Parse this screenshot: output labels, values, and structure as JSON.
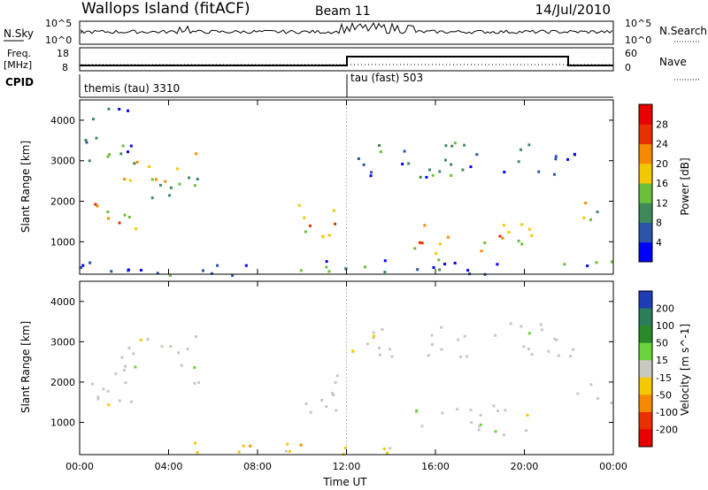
{
  "header": {
    "title": "Wallops Island (fitACF)",
    "beam": "Beam 11",
    "date": "14/Jul/2010"
  },
  "panels": {
    "nsky": {
      "label": "N.Sky",
      "left_ticks": [
        "10^5",
        "10^0"
      ],
      "right_ticks": [
        "10^5",
        "10^0"
      ],
      "right_label": "N.Search"
    },
    "freq": {
      "label_line1": "Freq.",
      "label_line2": "[MHz]",
      "left_ticks": [
        "18",
        "8"
      ],
      "right_ticks": [
        "60",
        "0"
      ],
      "right_label": "Nave"
    },
    "cpid": {
      "label": "CPID",
      "segments": [
        "themis (tau) 3310",
        "tau (fast) 503"
      ]
    }
  },
  "chart_data": [
    {
      "type": "heatmap",
      "name": "power",
      "ylabel": "Slant Range [km]",
      "yticks": [
        1000,
        2000,
        3000,
        4000
      ],
      "ylim": [
        200,
        4500
      ],
      "xlabel": "Time UT",
      "xticks": [
        "00:00",
        "04:00",
        "08:00",
        "12:00",
        "16:00",
        "20:00",
        "00:00"
      ],
      "colorbar": {
        "label": "Power [dB]",
        "ticks": [
          "4",
          "8",
          "12",
          "16",
          "20",
          "24",
          "28"
        ],
        "colors": [
          "#0000ff",
          "#2a55a8",
          "#3f8a5a",
          "#6bbf3a",
          "#f2c800",
          "#f58a00",
          "#e83000",
          "#e60000"
        ]
      },
      "echo_regions": [
        {
          "t": [
            0.5,
            3.5
          ],
          "r": [
            1300,
            2000
          ],
          "level": "strong"
        },
        {
          "t": [
            1.5,
            5.3
          ],
          "r": [
            2000,
            3300
          ],
          "level": "medium"
        },
        {
          "t": [
            0.2,
            2.5
          ],
          "r": [
            3000,
            4500
          ],
          "level": "weak"
        },
        {
          "t": [
            9.8,
            12.0
          ],
          "r": [
            1100,
            2200
          ],
          "level": "strong"
        },
        {
          "t": [
            12.2,
            22.3
          ],
          "r": [
            2600,
            3500
          ],
          "level": "weak"
        },
        {
          "t": [
            14.5,
            20.5
          ],
          "r": [
            700,
            1500
          ],
          "level": "strong"
        },
        {
          "t": [
            22.0,
            24.0
          ],
          "r": [
            1500,
            2000
          ],
          "level": "medium"
        },
        {
          "t": [
            0.0,
            24.0
          ],
          "r": [
            200,
            600
          ],
          "level": "weak"
        }
      ]
    },
    {
      "type": "heatmap",
      "name": "velocity",
      "ylabel": "Slant Range [km]",
      "yticks": [
        1000,
        2000,
        3000,
        4000
      ],
      "ylim": [
        200,
        4500
      ],
      "xlabel": "Time UT",
      "xticks": [
        "00:00",
        "04:00",
        "08:00",
        "12:00",
        "16:00",
        "20:00",
        "00:00"
      ],
      "colorbar": {
        "label": "Velocity [m s^-1]",
        "ticks": [
          "200",
          "100",
          "50",
          "15",
          "-15",
          "-50",
          "-100",
          "-200"
        ],
        "colors": [
          "#1e3cb4",
          "#2e7d5a",
          "#2a8a2a",
          "#6ad23a",
          "#c8c8c0",
          "#f5c800",
          "#f58a00",
          "#e83000",
          "#e60000"
        ]
      },
      "echo_regions": [
        {
          "t": [
            0.5,
            3.5
          ],
          "r": [
            1300,
            2000
          ],
          "velocity": "near-zero"
        },
        {
          "t": [
            1.5,
            5.3
          ],
          "r": [
            2000,
            3300
          ],
          "velocity": "near-zero"
        },
        {
          "t": [
            9.8,
            12.0
          ],
          "r": [
            1100,
            2200
          ],
          "velocity": "near-zero"
        },
        {
          "t": [
            12.2,
            22.3
          ],
          "r": [
            2600,
            3500
          ],
          "velocity": "near-zero"
        },
        {
          "t": [
            14.5,
            20.5
          ],
          "r": [
            700,
            1500
          ],
          "velocity": "near-zero"
        },
        {
          "t": [
            22.0,
            24.0
          ],
          "r": [
            1500,
            2000
          ],
          "velocity": "near-zero"
        },
        {
          "t": [
            5.0,
            14.0
          ],
          "r": [
            200,
            600
          ],
          "velocity": "-15 to -50"
        }
      ]
    }
  ]
}
